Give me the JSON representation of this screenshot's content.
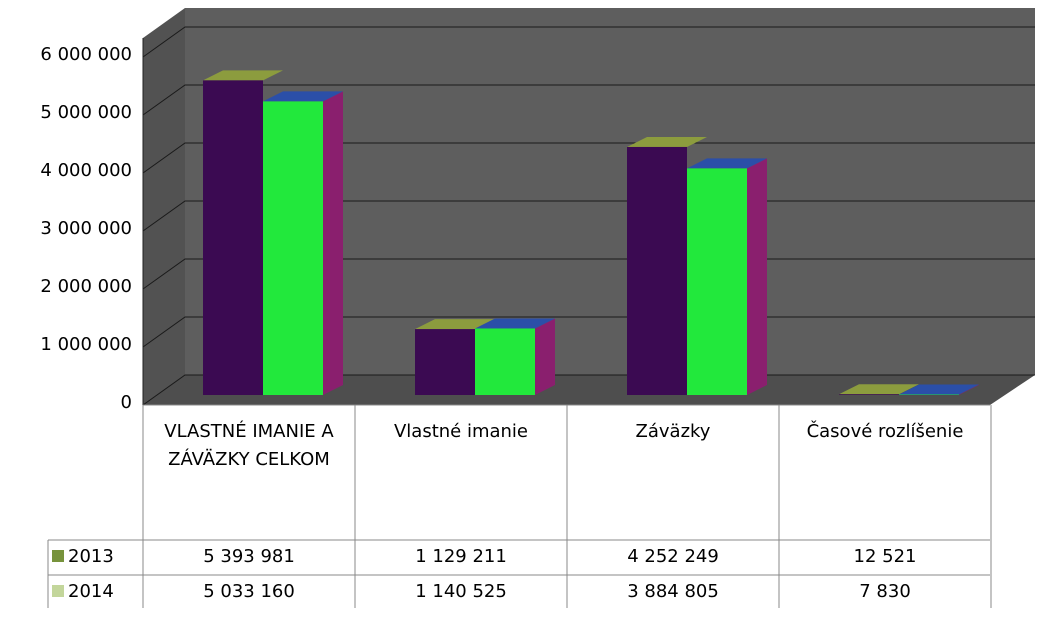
{
  "chart_data": {
    "type": "bar3d",
    "categories": [
      "VLASTNÉ IMANIE A ZÁVÄZKY CELKOM",
      "Vlastné imanie",
      "Záväzky",
      "Časové rozlíšenie"
    ],
    "series": [
      {
        "name": "2013",
        "color": "#3b0a52",
        "top_color": "#8c9c3e",
        "legend_color": "#77933c",
        "values": [
          5393981,
          1129211,
          4252249,
          12521
        ],
        "value_labels": [
          "5 393 981",
          "1 129 211",
          "4 252 249",
          "12 521"
        ]
      },
      {
        "name": "2014",
        "color": "#22e83c",
        "top_color": "#2b4fa8",
        "side_color": "#8a1f6e",
        "legend_color": "#c3d69b",
        "values": [
          5033160,
          1140525,
          3884805,
          7830
        ],
        "value_labels": [
          "5 033 160",
          "1 140 525",
          "3 884 805",
          "7 830"
        ]
      }
    ],
    "ylim": [
      0,
      6000000
    ],
    "yticks": [
      {
        "value": 0,
        "label": "0"
      },
      {
        "value": 1000000,
        "label": "1 000 000"
      },
      {
        "value": 2000000,
        "label": "2 000 000"
      },
      {
        "value": 3000000,
        "label": "3 000 000"
      },
      {
        "value": 4000000,
        "label": "4 000 000"
      },
      {
        "value": 5000000,
        "label": "5 000 000"
      },
      {
        "value": 6000000,
        "label": "6 000 000"
      }
    ],
    "grid": true
  }
}
